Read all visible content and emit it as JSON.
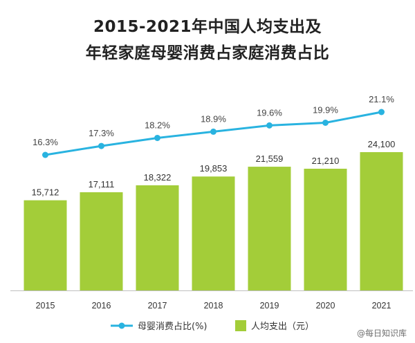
{
  "title_lines": [
    "2015-2021年中国人均支出及",
    "年轻家庭母婴消费占家庭消费占比"
  ],
  "watermark": "@每日知识库",
  "colors": {
    "bar": "#a3cd39",
    "line": "#29b3e0",
    "axis": "#bfbfbf",
    "text": "#333333"
  },
  "chart_data": {
    "type": "bar",
    "categories": [
      "2015",
      "2016",
      "2017",
      "2018",
      "2019",
      "2020",
      "2021"
    ],
    "series": [
      {
        "name": "人均支出（元）",
        "type": "bar",
        "values": [
          15712,
          17111,
          18322,
          19853,
          21559,
          21210,
          24100
        ],
        "labels": [
          "15,712",
          "17,111",
          "18,322",
          "19,853",
          "21,559",
          "21,210",
          "24,100"
        ]
      },
      {
        "name": "母婴消费占比(%)",
        "type": "line",
        "values": [
          16.3,
          17.3,
          18.2,
          18.9,
          19.6,
          19.9,
          21.1
        ],
        "labels": [
          "16.3%",
          "17.3%",
          "18.2%",
          "18.9%",
          "19.6%",
          "19.9%",
          "21.1%"
        ]
      }
    ],
    "legend": [
      "母婴消费占比(%)",
      "人均支出（元）"
    ],
    "legend_position": "bottom",
    "bar_ylim": [
      0,
      24100
    ],
    "line_ylim": [
      16.3,
      21.1
    ],
    "grid": false
  }
}
